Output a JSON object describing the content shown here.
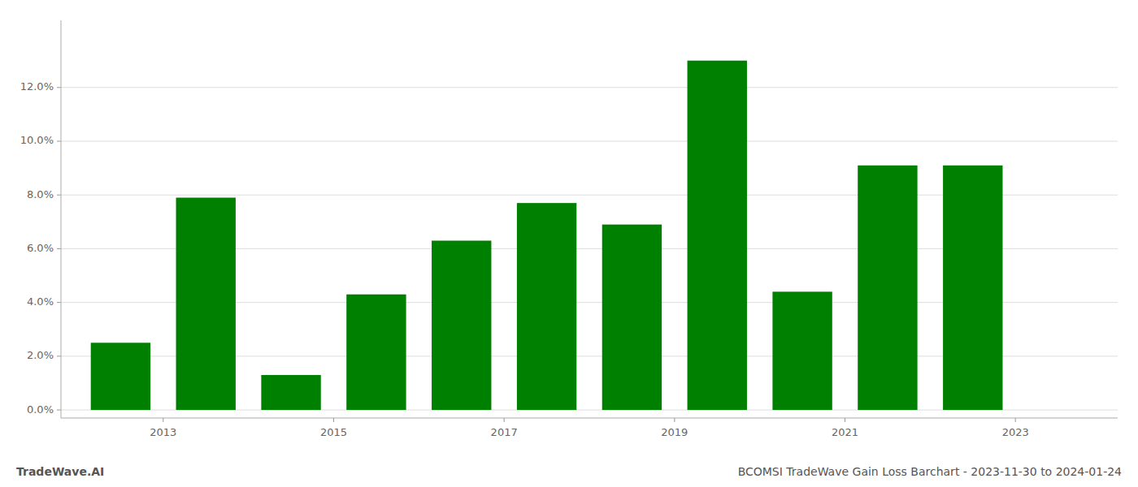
{
  "chart_data": {
    "type": "bar",
    "x": [
      2012,
      2013,
      2014,
      2015,
      2016,
      2017,
      2018,
      2019,
      2020,
      2021,
      2022
    ],
    "values": [
      0.025,
      0.079,
      0.013,
      0.043,
      0.063,
      0.077,
      0.069,
      0.13,
      0.044,
      0.091,
      0.091
    ],
    "color": "#008000",
    "xlim": [
      2011.3,
      2023.7
    ],
    "xticks": [
      {
        "value": 2012.5,
        "label": "2013"
      },
      {
        "value": 2014.5,
        "label": "2015"
      },
      {
        "value": 2016.5,
        "label": "2017"
      },
      {
        "value": 2018.5,
        "label": "2019"
      },
      {
        "value": 2020.5,
        "label": "2021"
      },
      {
        "value": 2022.5,
        "label": "2023"
      }
    ],
    "ylim": [
      -0.003,
      0.145
    ],
    "yticks": [
      {
        "value": 0.0,
        "label": "0.0%"
      },
      {
        "value": 0.02,
        "label": "2.0%"
      },
      {
        "value": 0.04,
        "label": "4.0%"
      },
      {
        "value": 0.06,
        "label": "6.0%"
      },
      {
        "value": 0.08,
        "label": "8.0%"
      },
      {
        "value": 0.1,
        "label": "10.0%"
      },
      {
        "value": 0.12,
        "label": "12.0%"
      }
    ],
    "grid": true,
    "annotations": [
      "TradeWave.AI",
      "BCOMSI TradeWave Gain Loss Barchart - 2023-11-30 to 2024-01-24"
    ]
  }
}
